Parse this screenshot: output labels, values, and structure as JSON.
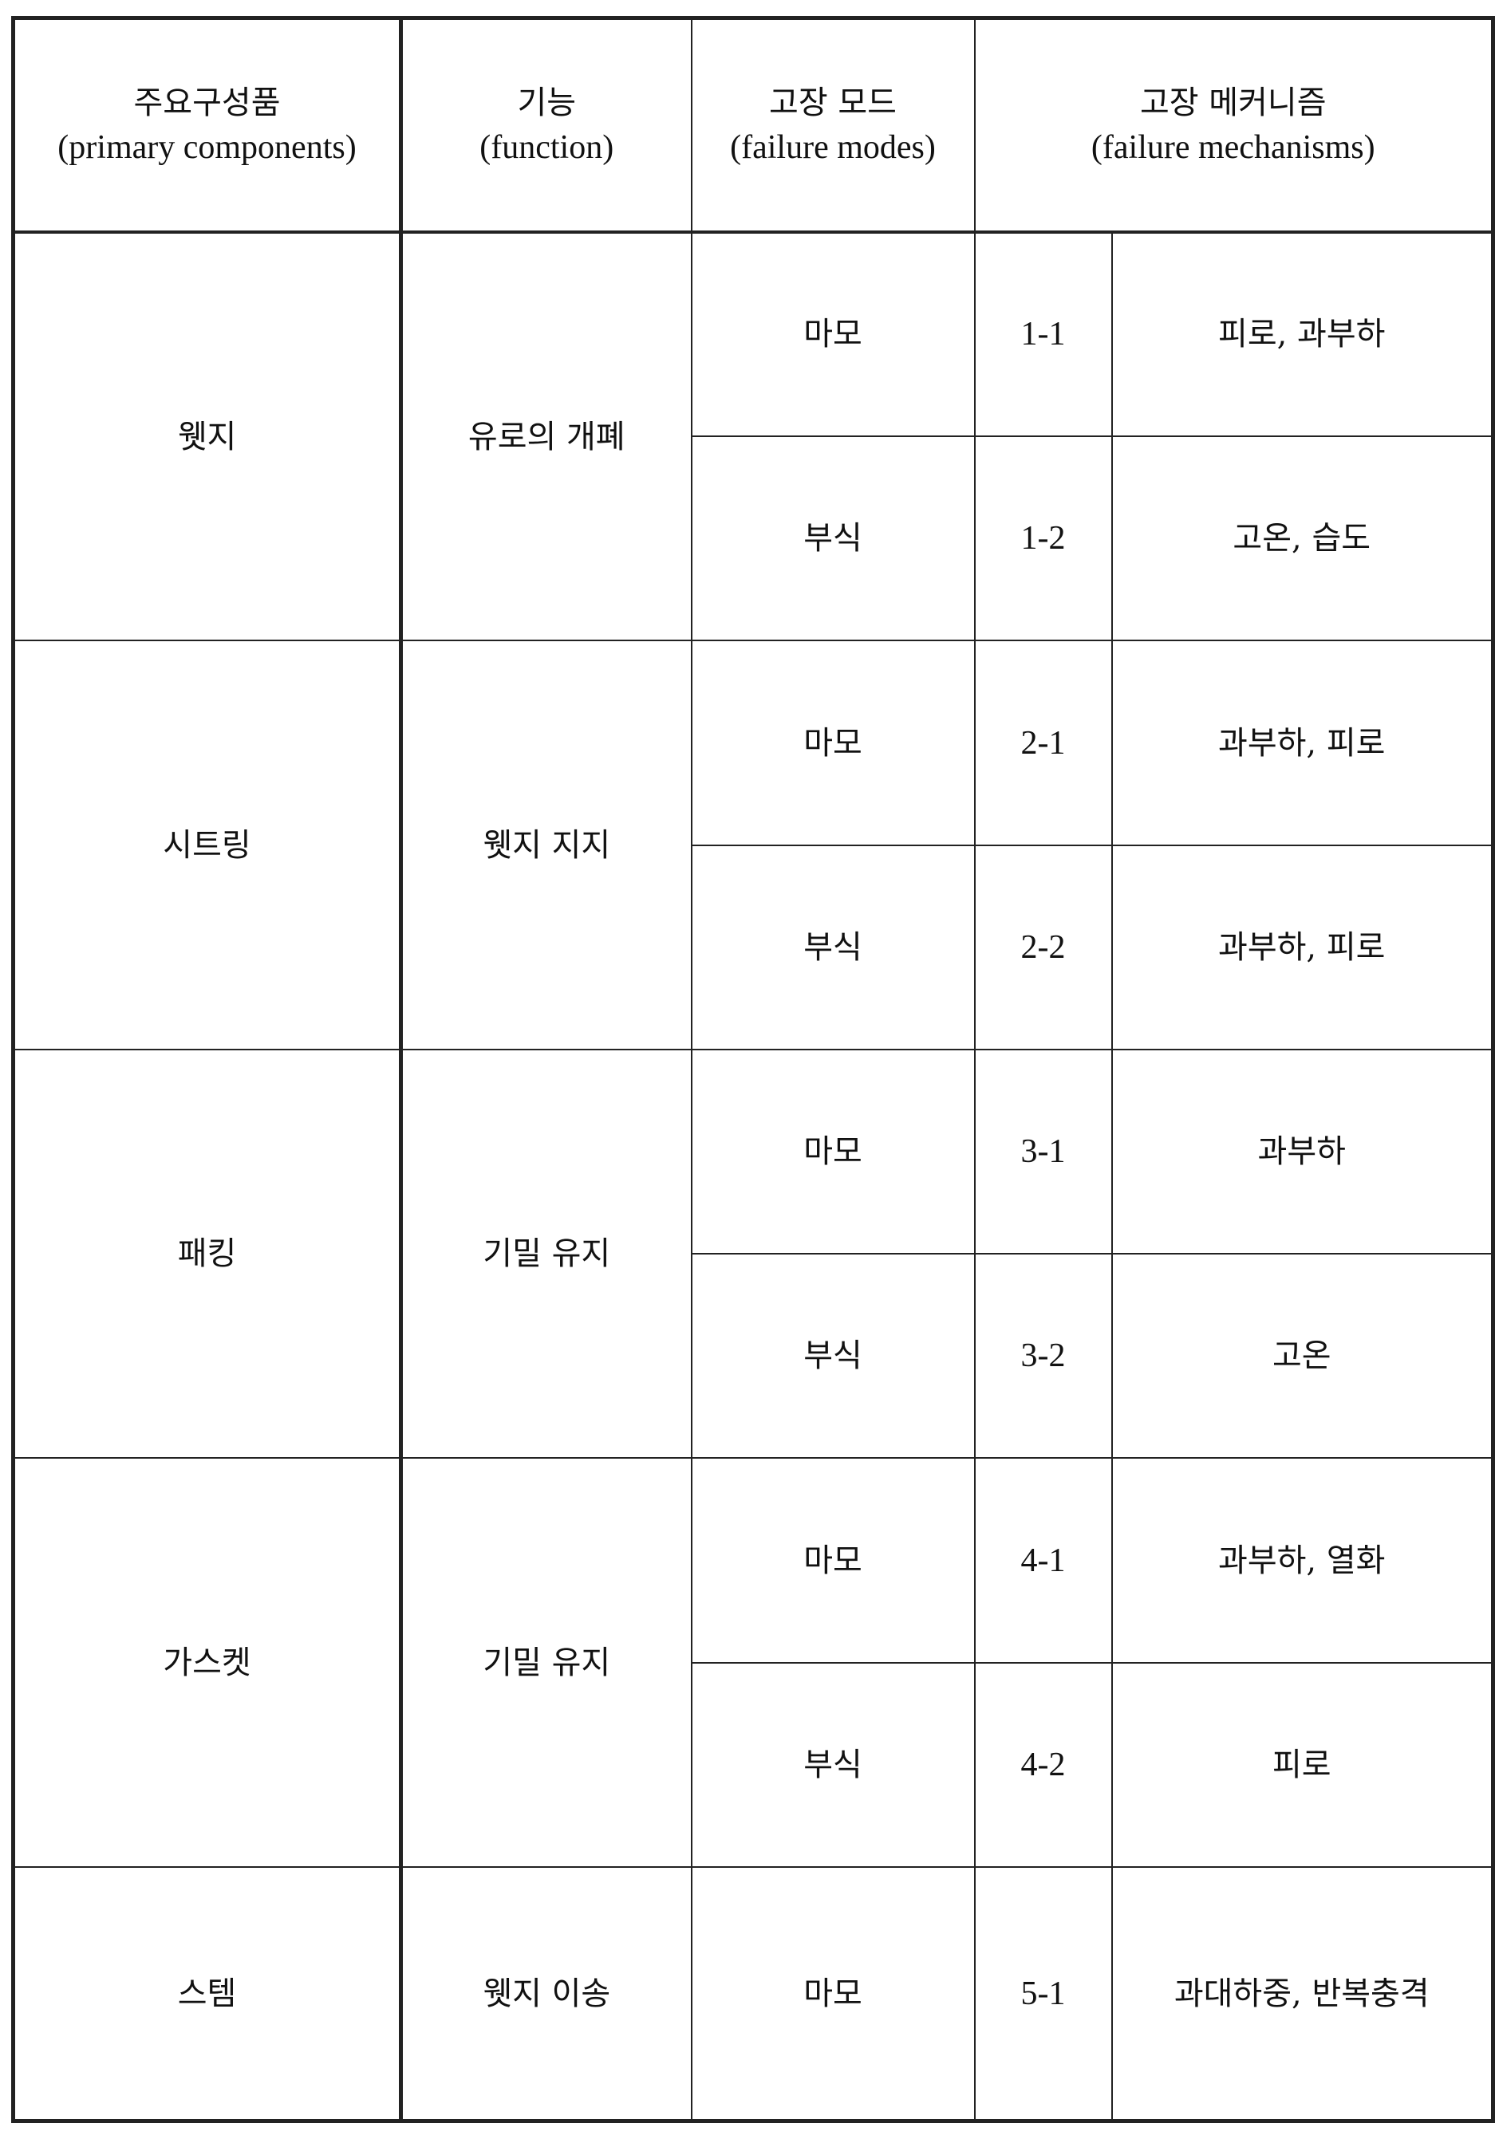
{
  "header": {
    "col1_ko": "주요구성품",
    "col1_en": "(primary components)",
    "col2_ko": "기능",
    "col2_en": "(function)",
    "col3_ko": "고장 모드",
    "col3_en": "(failure modes)",
    "col4_ko": "고장 메커니즘",
    "col4_en": "(failure mechanisms)"
  },
  "rows": [
    {
      "component": "웻지",
      "function": "유로의 개폐",
      "modes": [
        {
          "mode": "마모",
          "id": "1-1",
          "mechanism": "피로, 과부하"
        },
        {
          "mode": "부식",
          "id": "1-2",
          "mechanism": "고온, 습도"
        }
      ]
    },
    {
      "component": "시트링",
      "function": "웻지 지지",
      "modes": [
        {
          "mode": "마모",
          "id": "2-1",
          "mechanism": "과부하, 피로"
        },
        {
          "mode": "부식",
          "id": "2-2",
          "mechanism": "과부하, 피로"
        }
      ]
    },
    {
      "component": "패킹",
      "function": "기밀 유지",
      "modes": [
        {
          "mode": "마모",
          "id": "3-1",
          "mechanism": "과부하"
        },
        {
          "mode": "부식",
          "id": "3-2",
          "mechanism": "고온"
        }
      ]
    },
    {
      "component": "가스켓",
      "function": "기밀 유지",
      "modes": [
        {
          "mode": "마모",
          "id": "4-1",
          "mechanism": "과부하, 열화"
        },
        {
          "mode": "부식",
          "id": "4-2",
          "mechanism": "피로"
        }
      ]
    },
    {
      "component": "스템",
      "function": "웻지 이송",
      "modes": [
        {
          "mode": "마모",
          "id": "5-1",
          "mechanism": "과대하중, 반복충격"
        }
      ]
    }
  ]
}
